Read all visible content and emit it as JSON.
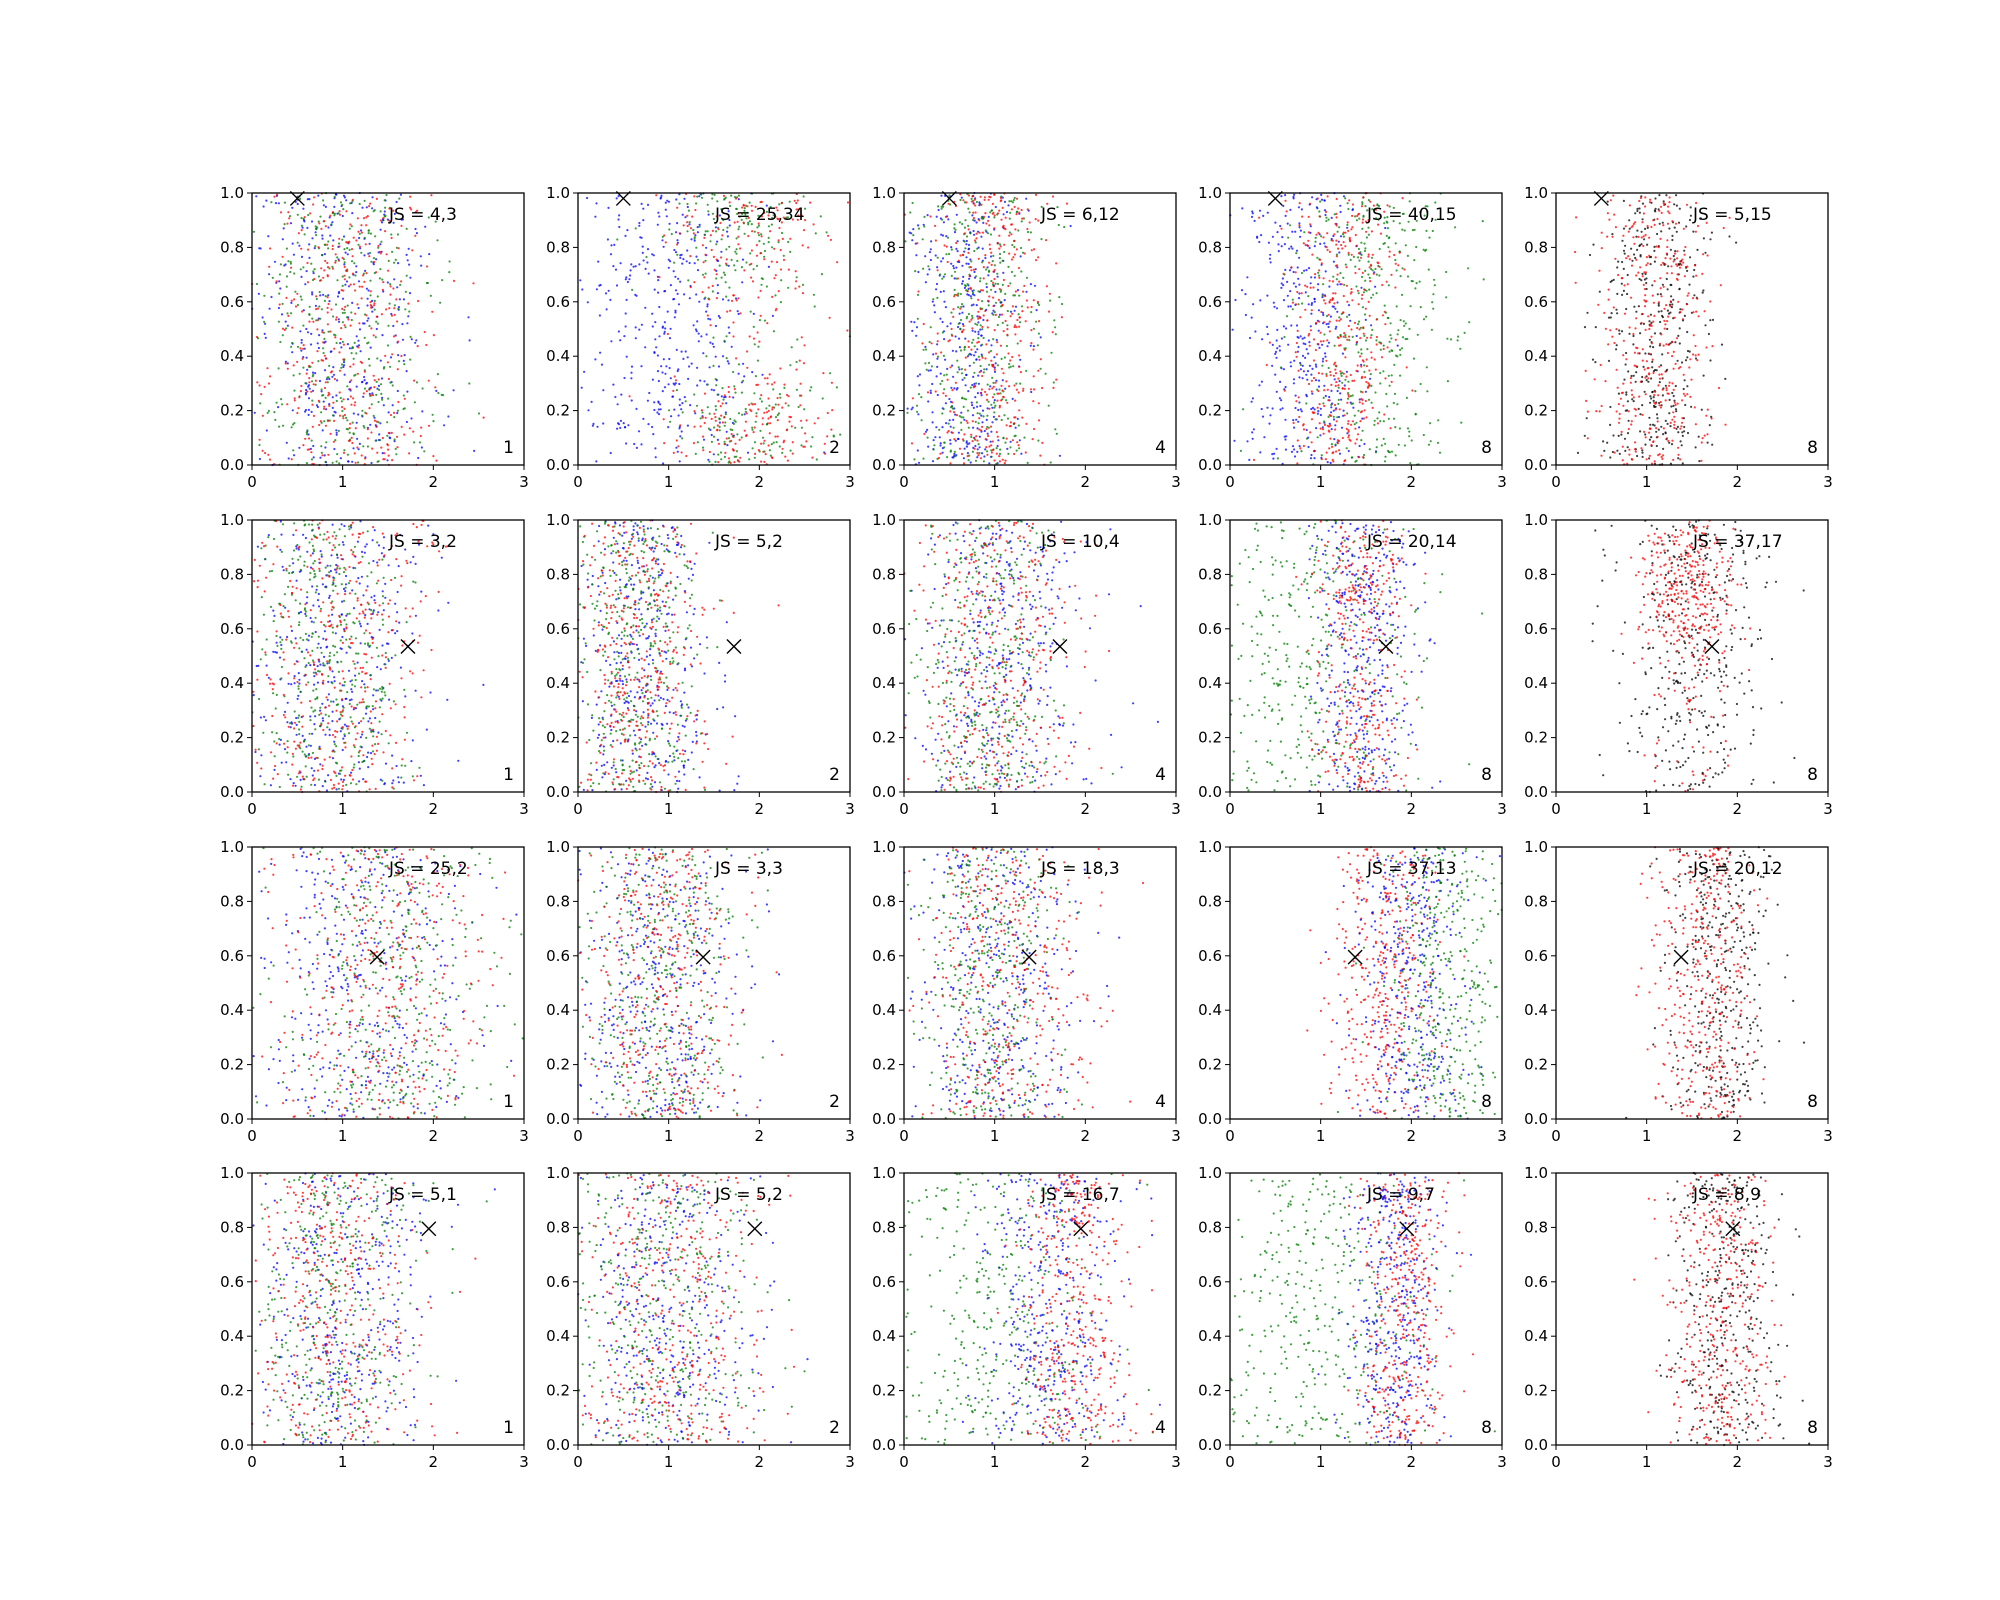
{
  "chart_data": {
    "type": "scatter",
    "layout": "4x5 grid of small multiples",
    "xlim": [
      0,
      3
    ],
    "ylim": [
      0,
      1
    ],
    "x_ticks": [
      "0",
      "1",
      "2",
      "3"
    ],
    "y_ticks": [
      "0.0",
      "0.2",
      "0.4",
      "0.6",
      "0.8",
      "1.0"
    ],
    "series_colors": {
      "blue": "#0000ff",
      "green": "#008000",
      "red": "#ff0000",
      "black": "#000000"
    },
    "marker_color": "#000000",
    "rows": [
      {
        "marker": [
          0.5,
          0.98
        ],
        "panels": [
          {
            "js_label": "JS = 4,3",
            "corner_label": "1",
            "clusters": [
              {
                "color": "blue",
                "center": 1.0,
                "spread": 0.5
              },
              {
                "color": "green",
                "center": 1.0,
                "spread": 0.5
              },
              {
                "color": "red",
                "center": 1.0,
                "spread": 0.5
              }
            ]
          },
          {
            "js_label": "JS = 25,34",
            "corner_label": "2",
            "clusters": [
              {
                "color": "blue",
                "center": 1.0,
                "spread": 0.5
              },
              {
                "color": "green",
                "center": 1.8,
                "spread": 0.45,
                "y_bands": [
                  0.1,
                  0.9
                ]
              },
              {
                "color": "red",
                "center": 1.9,
                "spread": 0.45,
                "y_bands": [
                  0.1,
                  0.9
                ]
              }
            ]
          },
          {
            "js_label": "JS = 6,12",
            "corner_label": "4",
            "clusters": [
              {
                "color": "blue",
                "center": 0.7,
                "spread": 0.35
              },
              {
                "color": "green",
                "center": 0.85,
                "spread": 0.4
              },
              {
                "color": "red",
                "center": 1.0,
                "spread": 0.3
              }
            ]
          },
          {
            "js_label": "JS = 40,15",
            "corner_label": "8",
            "clusters": [
              {
                "color": "blue",
                "center": 0.8,
                "spread": 0.35
              },
              {
                "color": "green",
                "center": 1.6,
                "spread": 0.45
              },
              {
                "color": "red",
                "center": 1.2,
                "spread": 0.3
              }
            ]
          },
          {
            "js_label": "JS = 5,15",
            "corner_label": "8",
            "clusters": [
              {
                "color": "black",
                "center": 1.1,
                "spread": 0.3
              },
              {
                "color": "red",
                "center": 1.1,
                "spread": 0.3
              }
            ]
          }
        ]
      },
      {
        "marker": [
          1.72,
          0.535
        ],
        "panels": [
          {
            "js_label": "JS = 3,2",
            "corner_label": "1",
            "clusters": [
              {
                "color": "blue",
                "center": 0.9,
                "spread": 0.5
              },
              {
                "color": "green",
                "center": 0.8,
                "spread": 0.45
              },
              {
                "color": "red",
                "center": 0.9,
                "spread": 0.5
              }
            ]
          },
          {
            "js_label": "JS = 5,2",
            "corner_label": "2",
            "clusters": [
              {
                "color": "blue",
                "center": 0.7,
                "spread": 0.4
              },
              {
                "color": "green",
                "center": 0.6,
                "spread": 0.35
              },
              {
                "color": "red",
                "center": 0.7,
                "spread": 0.4
              }
            ]
          },
          {
            "js_label": "JS = 10,4",
            "corner_label": "4",
            "clusters": [
              {
                "color": "blue",
                "center": 1.1,
                "spread": 0.45
              },
              {
                "color": "green",
                "center": 0.9,
                "spread": 0.4
              },
              {
                "color": "red",
                "center": 1.0,
                "spread": 0.45
              }
            ]
          },
          {
            "js_label": "JS = 20,14",
            "corner_label": "8",
            "clusters": [
              {
                "color": "green",
                "center": 0.9,
                "spread": 0.55
              },
              {
                "color": "blue",
                "center": 1.5,
                "spread": 0.3
              },
              {
                "color": "red",
                "center": 1.45,
                "spread": 0.25,
                "y_bands": [
                  0.75,
                  0.15
                ]
              }
            ]
          },
          {
            "js_label": "JS = 37,17",
            "corner_label": "8",
            "clusters": [
              {
                "color": "black",
                "center": 1.5,
                "spread": 0.4
              },
              {
                "color": "red",
                "center": 1.45,
                "spread": 0.25,
                "y_bands": [
                  0.75
                ]
              }
            ]
          }
        ]
      },
      {
        "marker": [
          1.38,
          0.595
        ],
        "panels": [
          {
            "js_label": "JS = 25,2",
            "corner_label": "1",
            "clusters": [
              {
                "color": "blue",
                "center": 1.2,
                "spread": 0.6
              },
              {
                "color": "green",
                "center": 1.5,
                "spread": 0.6
              },
              {
                "color": "red",
                "center": 1.4,
                "spread": 0.6
              }
            ]
          },
          {
            "js_label": "JS = 3,3",
            "corner_label": "2",
            "clusters": [
              {
                "color": "blue",
                "center": 0.9,
                "spread": 0.45
              },
              {
                "color": "green",
                "center": 0.9,
                "spread": 0.45
              },
              {
                "color": "red",
                "center": 0.9,
                "spread": 0.45
              }
            ]
          },
          {
            "js_label": "JS = 18,3",
            "corner_label": "4",
            "clusters": [
              {
                "color": "blue",
                "center": 1.0,
                "spread": 0.45
              },
              {
                "color": "green",
                "center": 0.9,
                "spread": 0.4
              },
              {
                "color": "red",
                "center": 1.1,
                "spread": 0.45
              }
            ]
          },
          {
            "js_label": "JS = 37,13",
            "corner_label": "8",
            "clusters": [
              {
                "color": "red",
                "center": 1.7,
                "spread": 0.28
              },
              {
                "color": "blue",
                "center": 2.0,
                "spread": 0.3
              },
              {
                "color": "green",
                "center": 2.4,
                "spread": 0.35
              }
            ]
          },
          {
            "js_label": "JS = 20,12",
            "corner_label": "8",
            "clusters": [
              {
                "color": "black",
                "center": 1.8,
                "spread": 0.3
              },
              {
                "color": "red",
                "center": 1.65,
                "spread": 0.28
              }
            ]
          }
        ]
      },
      {
        "marker": [
          1.95,
          0.795
        ],
        "panels": [
          {
            "js_label": "JS = 5,1",
            "corner_label": "1",
            "clusters": [
              {
                "color": "blue",
                "center": 1.0,
                "spread": 0.5
              },
              {
                "color": "green",
                "center": 0.9,
                "spread": 0.5
              },
              {
                "color": "red",
                "center": 0.9,
                "spread": 0.5
              }
            ]
          },
          {
            "js_label": "JS = 5,2",
            "corner_label": "2",
            "clusters": [
              {
                "color": "blue",
                "center": 1.0,
                "spread": 0.5
              },
              {
                "color": "green",
                "center": 0.9,
                "spread": 0.5
              },
              {
                "color": "red",
                "center": 1.0,
                "spread": 0.5
              }
            ]
          },
          {
            "js_label": "JS = 16,7",
            "corner_label": "4",
            "clusters": [
              {
                "color": "green",
                "center": 1.0,
                "spread": 0.6
              },
              {
                "color": "blue",
                "center": 1.6,
                "spread": 0.4
              },
              {
                "color": "red",
                "center": 1.9,
                "spread": 0.3
              }
            ]
          },
          {
            "js_label": "JS = 9,7",
            "corner_label": "8",
            "clusters": [
              {
                "color": "green",
                "center": 0.9,
                "spread": 0.6
              },
              {
                "color": "blue",
                "center": 1.8,
                "spread": 0.25
              },
              {
                "color": "red",
                "center": 1.95,
                "spread": 0.25
              }
            ]
          },
          {
            "js_label": "JS = 8,9",
            "corner_label": "8",
            "clusters": [
              {
                "color": "black",
                "center": 1.85,
                "spread": 0.3
              },
              {
                "color": "red",
                "center": 1.8,
                "spread": 0.3
              }
            ]
          }
        ]
      }
    ]
  }
}
